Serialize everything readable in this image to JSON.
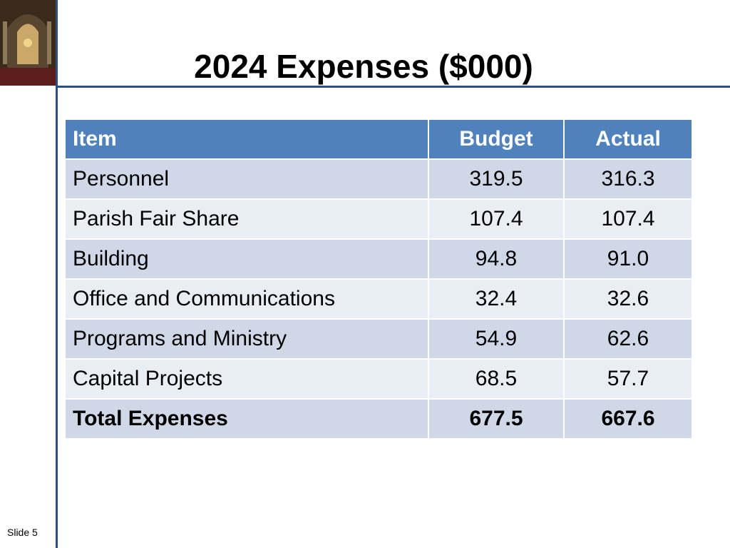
{
  "slide": {
    "title": "2024 Expenses ($000)",
    "footer": "Slide 5"
  },
  "table": {
    "header": [
      "Item",
      "Budget",
      "Actual"
    ],
    "rows": [
      [
        "Personnel",
        "319.5",
        "316.3"
      ],
      [
        "Parish Fair Share",
        "107.4",
        "107.4"
      ],
      [
        "Building",
        "94.8",
        "91.0"
      ],
      [
        "Office and Communications",
        "32.4",
        "32.6"
      ],
      [
        "Programs and Ministry",
        "54.9",
        "62.6"
      ],
      [
        "Capital Projects",
        "68.5",
        "57.7"
      ]
    ],
    "total": [
      "Total Expenses",
      "677.5",
      "667.6"
    ]
  }
}
